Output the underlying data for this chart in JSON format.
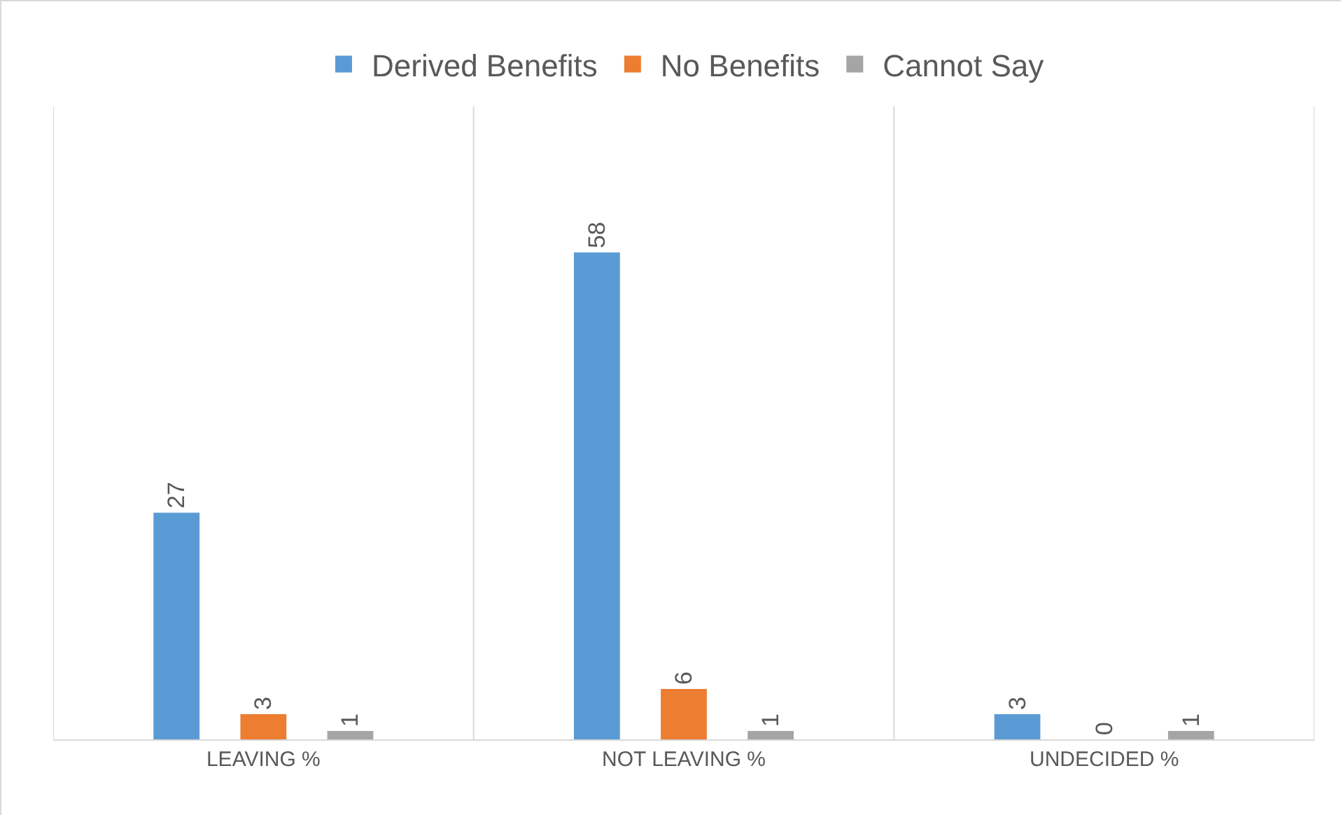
{
  "chart_data": {
    "type": "bar",
    "categories": [
      "LEAVING %",
      "NOT LEAVING %",
      "UNDECIDED %"
    ],
    "series": [
      {
        "name": "Derived Benefits",
        "color": "#5b9bd5",
        "values": [
          27,
          58,
          3
        ]
      },
      {
        "name": "No Benefits",
        "color": "#ed7d31",
        "values": [
          3,
          6,
          0
        ]
      },
      {
        "name": "Cannot Say",
        "color": "#a5a5a5",
        "values": [
          1,
          1,
          1
        ]
      }
    ],
    "data_labels": true,
    "grid": "x",
    "legend": "top"
  }
}
